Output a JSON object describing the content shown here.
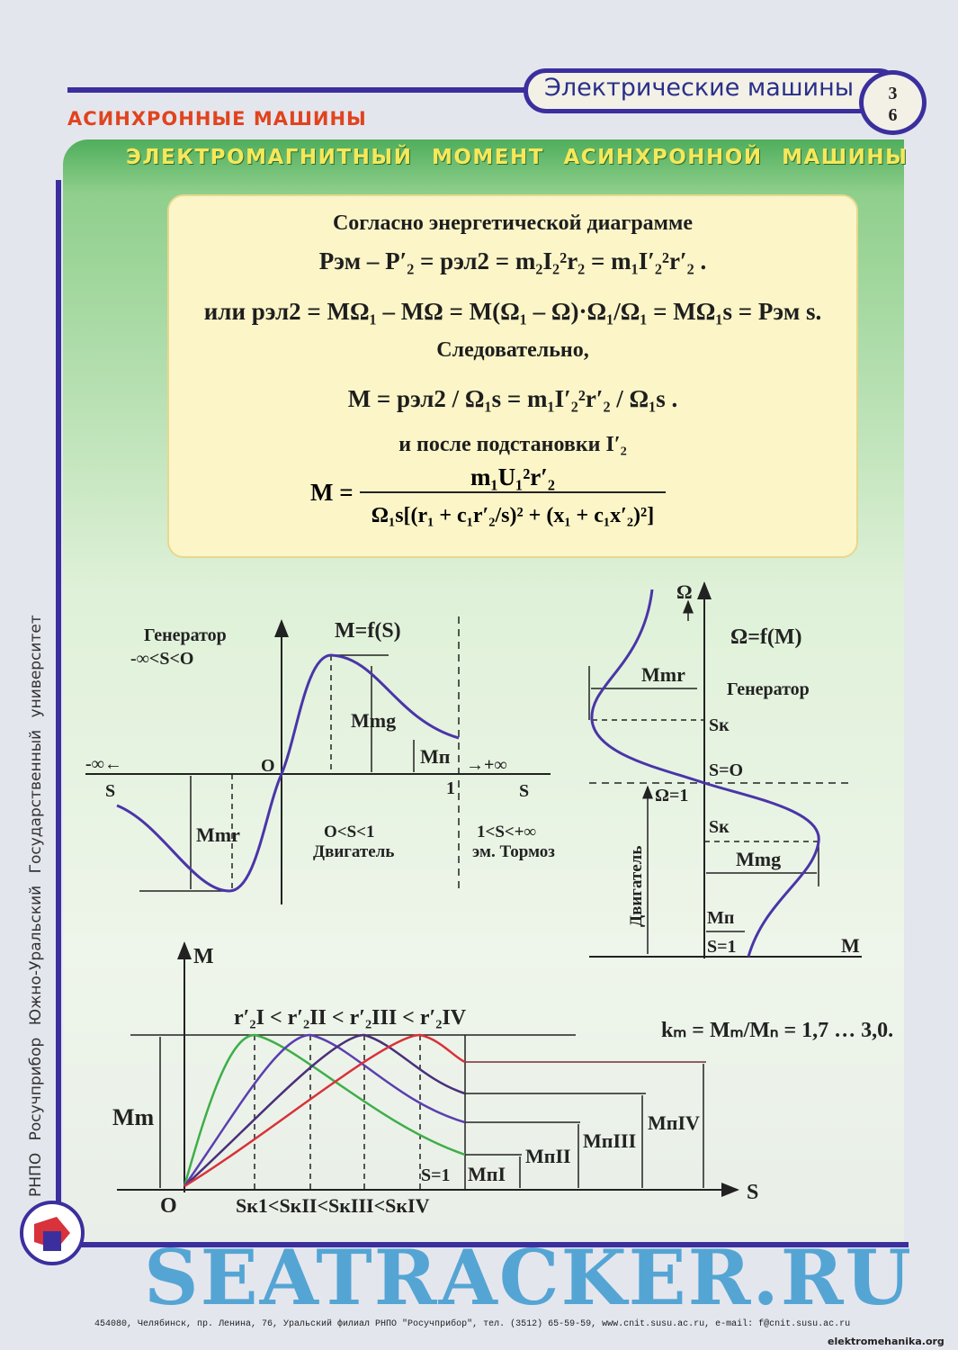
{
  "header": {
    "title": "Электрические машины",
    "page_top": "3",
    "page_bottom": "6",
    "section": "АСИНХРОННЫЕ МАШИНЫ",
    "banner": "ЭЛЕКТРОМАГНИТНЫЙ МОМЕНТ АСИНХРОННОЙ МАШИНЫ"
  },
  "formulas": {
    "intro": "Согласно энергетической диаграмме",
    "line1": "Pэм – P′₂ = pэл2 = m₂I₂²r₂ = m₁I′₂²r′₂ .",
    "line2": "или  pэл2 = MΩ₁ – MΩ = M(Ω₁ – Ω)·Ω₁/Ω₁ = MΩ₁s = Pэм s.",
    "hence": "Следовательно,",
    "line3": "M = pэл2 / Ω₁s = m₁I′₂²r′₂ / Ω₁s .",
    "subst": "и после подстановки I′₂",
    "line4_num": "m₁U₁²r′₂",
    "line4_lhs": "M =",
    "line4_den": "Ω₁s[(r₁ + c₁r′₂/s)² + (x₁ + c₁x′₂)²]"
  },
  "diagram_ms": {
    "generator": "Генератор",
    "gen_range": "-∞<S<O",
    "title": "M=f(S)",
    "origin": "O",
    "minus_inf": "-∞←",
    "s_left": "S",
    "m_mg": "Mmg",
    "m_p": "Mп",
    "plus_inf": "→+∞",
    "one": "1",
    "s_right": "S",
    "m_mr": "Mmr",
    "motor_range": "O<S<1",
    "motor": "Двигатель",
    "brake_range": "1<S<+∞",
    "brake": "эм. Тормоз"
  },
  "diagram_om": {
    "omega": "Ω",
    "title": "Ω=f(M)",
    "m_mr": "Mmr",
    "generator": "Генератор",
    "sk_top": "Sк",
    "s0": "S=O",
    "omega1": "Ω=1",
    "sk_bottom": "Sк",
    "m_mg": "Mmg",
    "motor": "Двигатель",
    "m_p": "Mп",
    "s1": "S=1",
    "m_axis": "M"
  },
  "diagram_family": {
    "m_axis": "M",
    "r_relation": "r′₂I < r′₂II < r′₂III < r′₂IV",
    "km": "kₘ = Mₘ/Mₙ = 1,7 … 3,0.",
    "m_m": "Mm",
    "origin": "O",
    "sk_relation": "Sк1<SкII<SкIII<SкIV",
    "s_axis": "S",
    "s1": "S=1",
    "mp1": "MпI",
    "mp2": "MпII",
    "mp3": "MпIII",
    "mp4": "MпIV",
    "colors": [
      "#3fae4a",
      "#5a3fb0",
      "#4a2f7a",
      "#d8323a"
    ]
  },
  "sidebar": {
    "vertical_text": "РНПО Росучприбор   Южно-Уральский Государственный университет"
  },
  "footer": {
    "address": "454080, Челябинск, пр. Ленина, 76, Уральский филиал РНПО \"Росучприбор\", тел. (3512) 65-59-59, www.cnit.susu.ac.ru,  e-mail: f@cnit.susu.ac.ru",
    "watermark": "SEATRACKER.RU",
    "site": "elektromehanika.org"
  }
}
